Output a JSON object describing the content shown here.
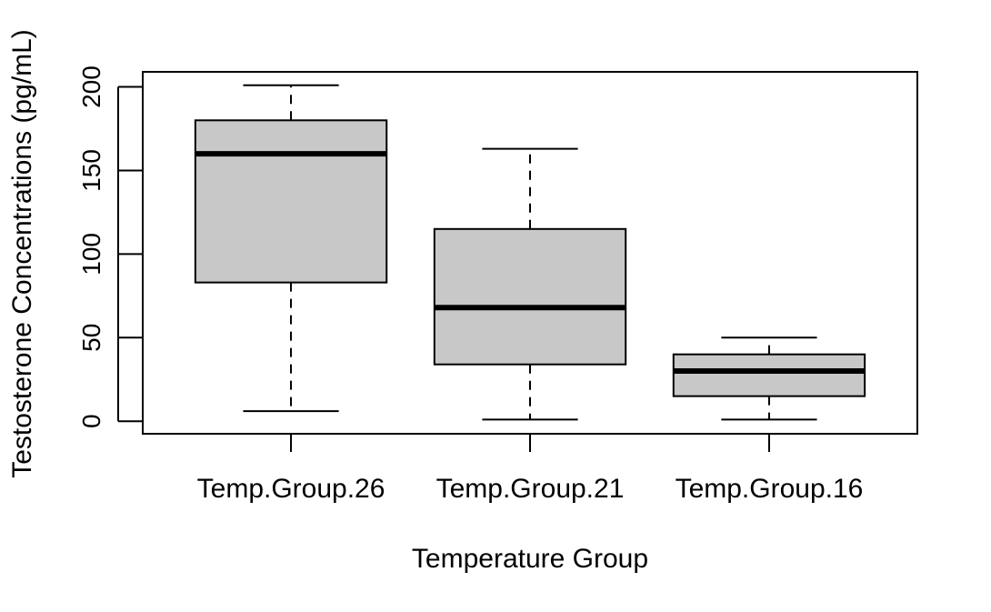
{
  "chart_data": {
    "type": "boxplot",
    "title": "",
    "xlabel": "Temperature Group",
    "ylabel": "Testosterone Concentrations (pg/mL)",
    "ylim": [
      -7.5,
      209
    ],
    "yticks": [
      0,
      50,
      100,
      150,
      200
    ],
    "categories": [
      "Temp.Group.26",
      "Temp.Group.21",
      "Temp.Group.16"
    ],
    "boxes": [
      {
        "category": "Temp.Group.26",
        "min": 6,
        "q1": 83,
        "median": 160,
        "q3": 180,
        "max": 201
      },
      {
        "category": "Temp.Group.21",
        "min": 1,
        "q1": 34,
        "median": 68,
        "q3": 115,
        "max": 163
      },
      {
        "category": "Temp.Group.16",
        "min": 1,
        "q1": 15,
        "median": 30,
        "q3": 40,
        "max": 50
      }
    ],
    "box_fill": "#c8c8c8",
    "line_color": "#000000",
    "grid": false,
    "legend": "none"
  }
}
